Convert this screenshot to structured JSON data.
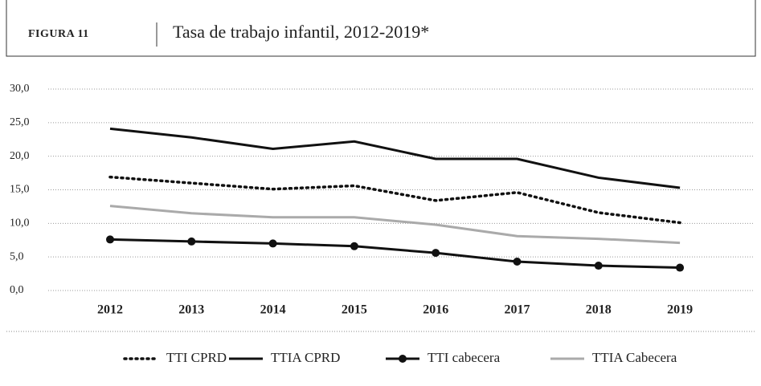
{
  "chart_data": {
    "type": "line",
    "label": "FIGURA 11",
    "title": "Tasa de trabajo infantil, 2012-2019*",
    "categories": [
      "2012",
      "2013",
      "2014",
      "2015",
      "2016",
      "2017",
      "2018",
      "2019"
    ],
    "series": [
      {
        "name": "TTI CPRD",
        "color": "#111111",
        "dash": "dotted",
        "values": [
          16.9,
          16.0,
          15.1,
          15.6,
          13.4,
          14.6,
          11.6,
          10.1
        ]
      },
      {
        "name": "TTIA CPRD",
        "color": "#111111",
        "dash": "solid",
        "values": [
          24.1,
          22.8,
          21.1,
          22.2,
          19.6,
          19.6,
          16.8,
          15.3
        ]
      },
      {
        "name": "TTI cabecera",
        "color": "#111111",
        "dash": "solid",
        "marker": "circle",
        "values": [
          7.6,
          7.3,
          7.0,
          6.6,
          5.6,
          4.3,
          3.7,
          3.4
        ]
      },
      {
        "name": "TTIA Cabecera",
        "color": "#aaaaaa",
        "dash": "solid",
        "values": [
          12.6,
          11.5,
          10.9,
          10.9,
          9.8,
          8.1,
          7.7,
          7.1
        ]
      }
    ],
    "ylim": [
      0,
      30
    ],
    "yticks": [
      {
        "value": 0,
        "label": "0,0"
      },
      {
        "value": 5,
        "label": "5,0"
      },
      {
        "value": 10,
        "label": "10,0"
      },
      {
        "value": 15,
        "label": "15,0"
      },
      {
        "value": 20,
        "label": "20,0"
      },
      {
        "value": 25,
        "label": "25,0"
      },
      {
        "value": 30,
        "label": "30,0"
      }
    ],
    "grid": true,
    "legend": "bottom"
  }
}
